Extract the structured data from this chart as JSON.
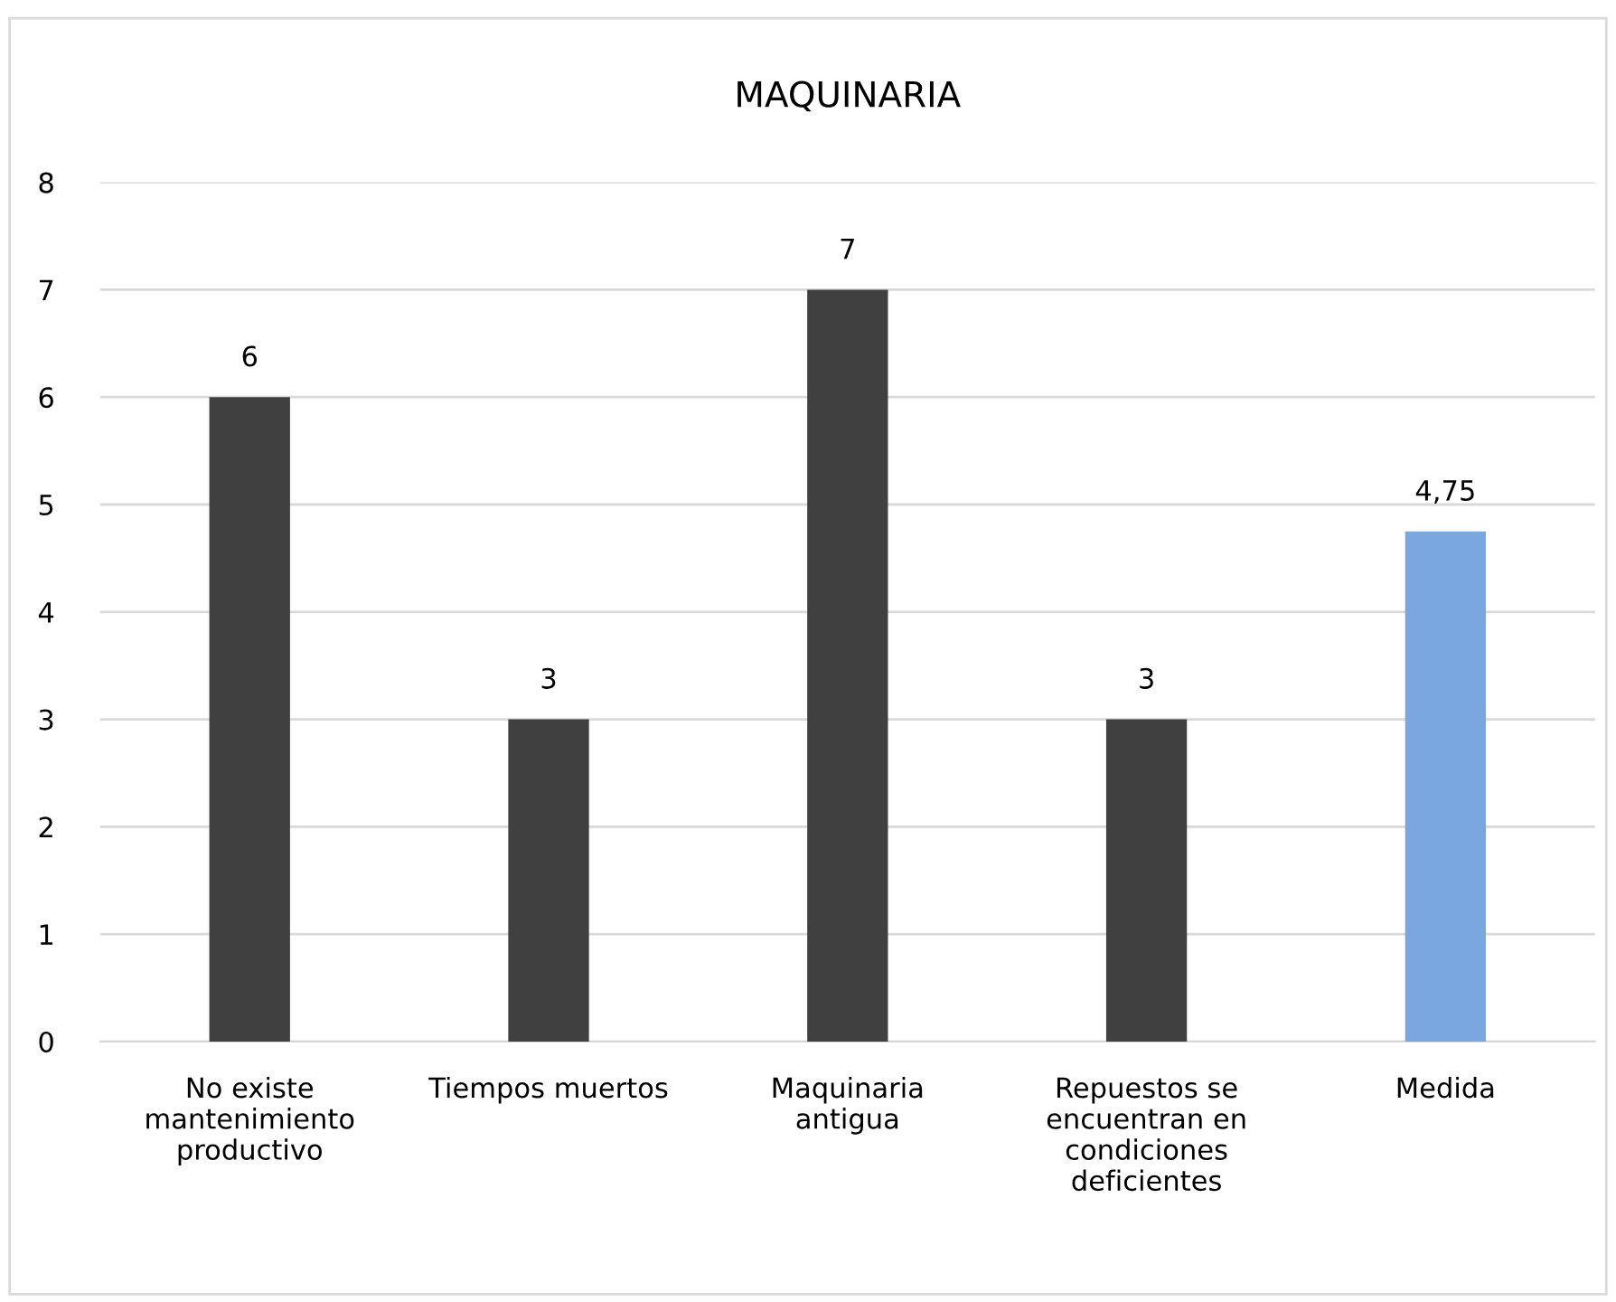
{
  "chart_data": {
    "type": "bar",
    "title": "MAQUINARIA",
    "categories": [
      "No existe\nmantenimiento\nproductivo",
      "Tiempos muertos",
      "Maquinaria\nantigua",
      "Repuestos se\nencuentran en\ncondiciones\ndeficientes",
      "Medida"
    ],
    "values": [
      6,
      3,
      7,
      3,
      4.75
    ],
    "colors": [
      "#404040",
      "#404040",
      "#404040",
      "#404040",
      "#7ba7e0"
    ],
    "value_labels": [
      "6",
      "3",
      "7",
      "3",
      "4,75"
    ],
    "ylim": [
      0,
      8
    ],
    "yticks": [
      0,
      1,
      2,
      3,
      4,
      5,
      6,
      7,
      8
    ],
    "grid": "y",
    "legend": false
  }
}
